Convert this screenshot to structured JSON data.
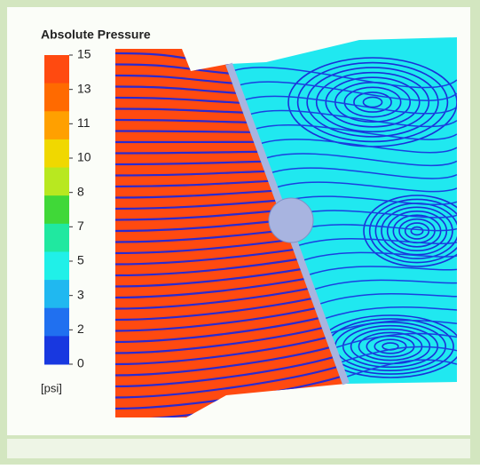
{
  "legend": {
    "title": "Absolute Pressure",
    "ticks": [
      15,
      13,
      11,
      10,
      8,
      7,
      5,
      3,
      2,
      0
    ],
    "unit": "[psi]",
    "colors": [
      "#ff4a10",
      "#ff6a00",
      "#ffa000",
      "#f0d800",
      "#b8e820",
      "#40d838",
      "#20e8a0",
      "#20f0e8",
      "#20b8f0",
      "#2070f0",
      "#1838e0"
    ]
  }
}
